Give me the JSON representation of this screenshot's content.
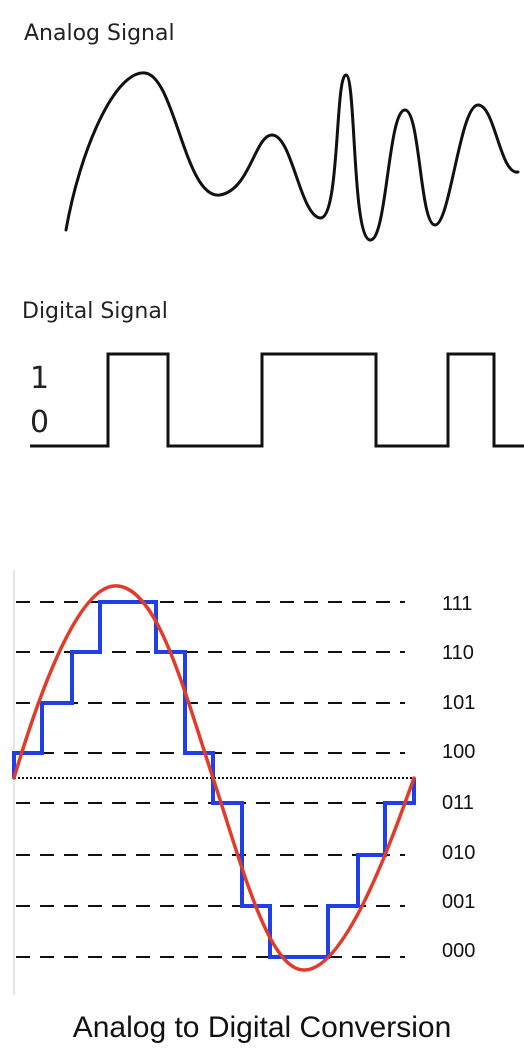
{
  "analog_section": {
    "title": "Analog Signal"
  },
  "digital_section": {
    "title": "Digital Signal",
    "level_high": "1",
    "level_low": "0"
  },
  "adc_section": {
    "codes": [
      "111",
      "110",
      "101",
      "100",
      "011",
      "010",
      "001",
      "000"
    ],
    "caption": "Analog to Digital Conversion",
    "colors": {
      "sine": "#e23b2a",
      "staircase": "#1f3fe8",
      "reference_lines": "#111111"
    }
  }
}
